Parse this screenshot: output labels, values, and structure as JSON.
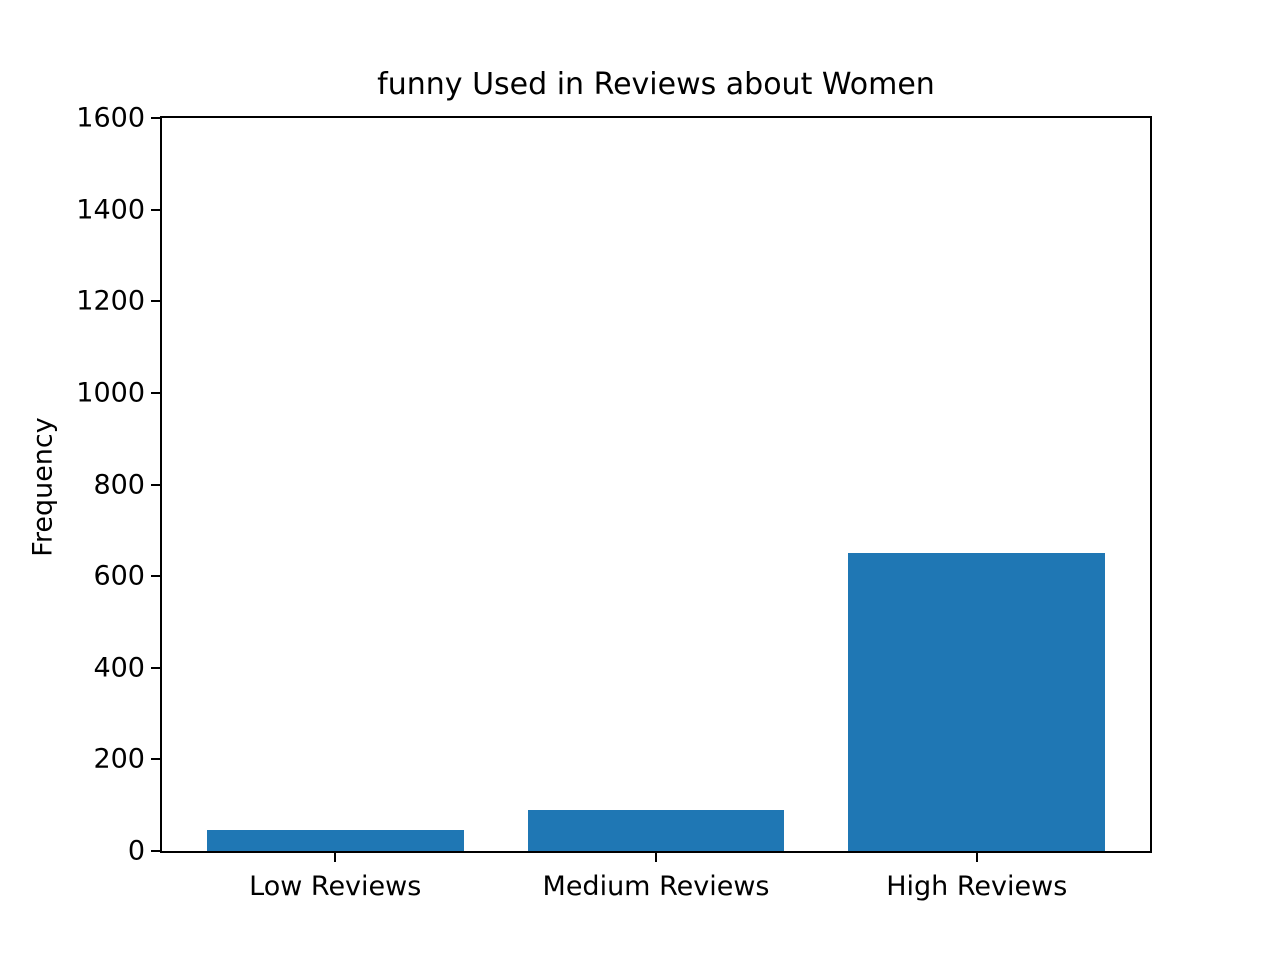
{
  "chart_data": {
    "type": "bar",
    "title": "funny Used in Reviews about Women",
    "xlabel": "",
    "ylabel": "Frequency",
    "categories": [
      "Low Reviews",
      "Medium Reviews",
      "High Reviews"
    ],
    "values": [
      45,
      90,
      650
    ],
    "ylim": [
      0,
      1600
    ],
    "yticks": [
      0,
      200,
      400,
      600,
      800,
      1000,
      1200,
      1400,
      1600
    ],
    "bar_width_data_units": 0.8,
    "grid": false,
    "legend": null,
    "colors": {
      "bar": "#1f77b4",
      "axis": "#000000",
      "text": "#000000",
      "background": "#ffffff"
    }
  }
}
